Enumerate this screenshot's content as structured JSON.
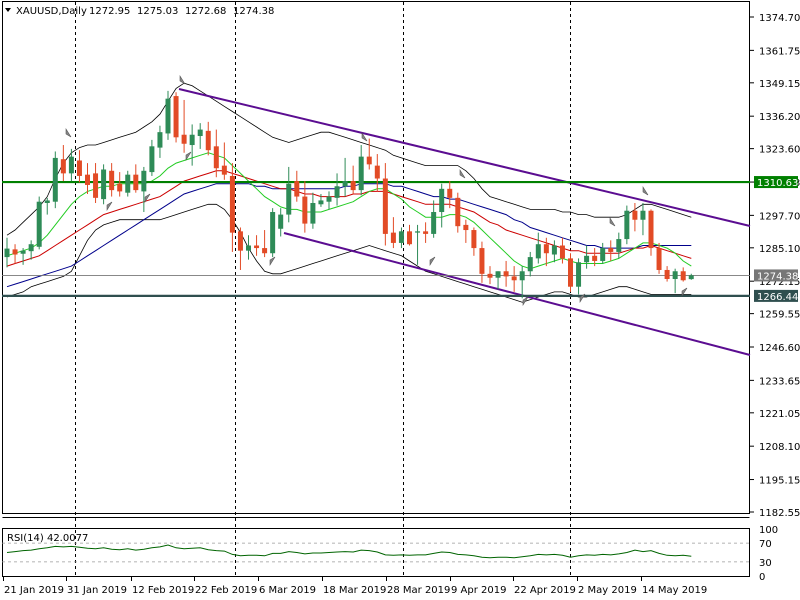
{
  "header": {
    "symbol": "XAUUSD,Daily",
    "open": "1272.95",
    "high": "1275.03",
    "low": "1272.68",
    "close": "1274.38"
  },
  "chart_data": {
    "type": "candlestick",
    "price_axis": {
      "ticks": [
        "1374.70",
        "1361.75",
        "1349.15",
        "1336.20",
        "1323.60",
        "1310.63",
        "1297.70",
        "1285.10",
        "1272.15",
        "1259.55",
        "1246.60",
        "1233.65",
        "1221.05",
        "1208.10",
        "1195.15",
        "1182.55"
      ],
      "ylim": [
        1182.55,
        1374.7
      ]
    },
    "level_labels": [
      {
        "name": "resistance",
        "value": "1310.63",
        "color": "#008000"
      },
      {
        "name": "support",
        "value": "1266.44",
        "color": "#2f4f4f"
      },
      {
        "name": "current",
        "value": "1274.38",
        "color": "#777777"
      }
    ],
    "time_axis": [
      "21 Jan 2019",
      "31 Jan 2019",
      "12 Feb 2019",
      "22 Feb 2019",
      "6 Mar 2019",
      "18 Mar 2019",
      "28 Mar 2019",
      "9 Apr 2019",
      "22 Apr 2019",
      "2 May 2019",
      "14 May 2019"
    ],
    "candles": [
      {
        "o": 1281.5,
        "h": 1289.0,
        "l": 1277.5,
        "c": 1284.8
      },
      {
        "o": 1284.5,
        "h": 1286.5,
        "l": 1279.0,
        "c": 1282.5
      },
      {
        "o": 1282.8,
        "h": 1285.0,
        "l": 1278.5,
        "c": 1284.0
      },
      {
        "o": 1283.8,
        "h": 1288.0,
        "l": 1280.5,
        "c": 1286.5
      },
      {
        "o": 1285.5,
        "h": 1305.0,
        "l": 1284.5,
        "c": 1303.0
      },
      {
        "o": 1302.5,
        "h": 1304.5,
        "l": 1298.0,
        "c": 1303.5
      },
      {
        "o": 1303.0,
        "h": 1322.5,
        "l": 1300.5,
        "c": 1320.0
      },
      {
        "o": 1319.5,
        "h": 1325.0,
        "l": 1311.0,
        "c": 1314.0
      },
      {
        "o": 1314.0,
        "h": 1323.5,
        "l": 1311.0,
        "c": 1320.5
      },
      {
        "o": 1319.0,
        "h": 1323.0,
        "l": 1310.5,
        "c": 1313.0
      },
      {
        "o": 1313.5,
        "h": 1318.0,
        "l": 1306.0,
        "c": 1309.5
      },
      {
        "o": 1314.0,
        "h": 1318.0,
        "l": 1302.5,
        "c": 1304.5
      },
      {
        "o": 1304.0,
        "h": 1317.5,
        "l": 1302.0,
        "c": 1315.5
      },
      {
        "o": 1315.0,
        "h": 1318.0,
        "l": 1305.0,
        "c": 1307.5
      },
      {
        "o": 1310.0,
        "h": 1314.5,
        "l": 1305.0,
        "c": 1307.0
      },
      {
        "o": 1306.5,
        "h": 1315.0,
        "l": 1305.0,
        "c": 1313.5
      },
      {
        "o": 1313.5,
        "h": 1317.5,
        "l": 1306.5,
        "c": 1307.5
      },
      {
        "o": 1307.0,
        "h": 1316.5,
        "l": 1299.0,
        "c": 1315.0
      },
      {
        "o": 1314.5,
        "h": 1327.0,
        "l": 1313.0,
        "c": 1324.5
      },
      {
        "o": 1324.0,
        "h": 1332.5,
        "l": 1320.0,
        "c": 1330.0
      },
      {
        "o": 1329.5,
        "h": 1346.0,
        "l": 1327.0,
        "c": 1343.0
      },
      {
        "o": 1344.0,
        "h": 1345.5,
        "l": 1326.0,
        "c": 1328.0
      },
      {
        "o": 1329.0,
        "h": 1342.5,
        "l": 1322.0,
        "c": 1325.5
      },
      {
        "o": 1325.0,
        "h": 1333.0,
        "l": 1317.0,
        "c": 1329.0
      },
      {
        "o": 1328.5,
        "h": 1333.5,
        "l": 1323.5,
        "c": 1331.0
      },
      {
        "o": 1330.5,
        "h": 1334.0,
        "l": 1321.0,
        "c": 1323.0
      },
      {
        "o": 1324.5,
        "h": 1331.0,
        "l": 1312.5,
        "c": 1316.0
      },
      {
        "o": 1317.0,
        "h": 1326.0,
        "l": 1311.5,
        "c": 1313.5
      },
      {
        "o": 1313.0,
        "h": 1318.0,
        "l": 1283.5,
        "c": 1291.0
      },
      {
        "o": 1291.5,
        "h": 1293.0,
        "l": 1276.5,
        "c": 1284.0
      },
      {
        "o": 1284.0,
        "h": 1290.0,
        "l": 1280.5,
        "c": 1286.0
      },
      {
        "o": 1286.0,
        "h": 1290.0,
        "l": 1282.0,
        "c": 1285.0
      },
      {
        "o": 1285.0,
        "h": 1292.0,
        "l": 1281.5,
        "c": 1283.0
      },
      {
        "o": 1283.0,
        "h": 1300.5,
        "l": 1281.5,
        "c": 1299.0
      },
      {
        "o": 1292.5,
        "h": 1300.5,
        "l": 1289.5,
        "c": 1298.0
      },
      {
        "o": 1298.0,
        "h": 1316.5,
        "l": 1295.0,
        "c": 1310.0
      },
      {
        "o": 1311.0,
        "h": 1315.0,
        "l": 1303.0,
        "c": 1305.0
      },
      {
        "o": 1305.0,
        "h": 1311.0,
        "l": 1291.0,
        "c": 1294.5
      },
      {
        "o": 1294.5,
        "h": 1306.5,
        "l": 1292.5,
        "c": 1302.5
      },
      {
        "o": 1302.0,
        "h": 1306.0,
        "l": 1301.0,
        "c": 1303.5
      },
      {
        "o": 1303.0,
        "h": 1307.0,
        "l": 1300.0,
        "c": 1305.0
      },
      {
        "o": 1304.5,
        "h": 1314.0,
        "l": 1301.5,
        "c": 1309.0
      },
      {
        "o": 1309.0,
        "h": 1320.0,
        "l": 1305.0,
        "c": 1311.0
      },
      {
        "o": 1311.0,
        "h": 1317.0,
        "l": 1306.0,
        "c": 1307.5
      },
      {
        "o": 1307.5,
        "h": 1325.0,
        "l": 1305.5,
        "c": 1320.5
      },
      {
        "o": 1320.5,
        "h": 1327.5,
        "l": 1315.5,
        "c": 1317.5
      },
      {
        "o": 1317.0,
        "h": 1321.5,
        "l": 1307.0,
        "c": 1312.0
      },
      {
        "o": 1312.0,
        "h": 1318.0,
        "l": 1286.0,
        "c": 1290.5
      },
      {
        "o": 1291.0,
        "h": 1297.0,
        "l": 1285.0,
        "c": 1287.0
      },
      {
        "o": 1287.0,
        "h": 1293.0,
        "l": 1285.0,
        "c": 1291.5
      },
      {
        "o": 1291.5,
        "h": 1294.0,
        "l": 1286.0,
        "c": 1286.5
      },
      {
        "o": 1291.0,
        "h": 1294.0,
        "l": 1278.5,
        "c": 1291.5
      },
      {
        "o": 1291.5,
        "h": 1295.0,
        "l": 1287.0,
        "c": 1290.5
      },
      {
        "o": 1290.5,
        "h": 1303.5,
        "l": 1289.0,
        "c": 1299.0
      },
      {
        "o": 1299.0,
        "h": 1310.0,
        "l": 1293.0,
        "c": 1308.0
      },
      {
        "o": 1308.0,
        "h": 1311.0,
        "l": 1300.5,
        "c": 1304.5
      },
      {
        "o": 1304.5,
        "h": 1306.5,
        "l": 1291.0,
        "c": 1293.5
      },
      {
        "o": 1294.0,
        "h": 1296.0,
        "l": 1287.0,
        "c": 1292.0
      },
      {
        "o": 1292.0,
        "h": 1293.0,
        "l": 1282.0,
        "c": 1285.0
      },
      {
        "o": 1285.0,
        "h": 1287.5,
        "l": 1271.5,
        "c": 1275.0
      },
      {
        "o": 1275.0,
        "h": 1278.0,
        "l": 1271.0,
        "c": 1273.5
      },
      {
        "o": 1273.5,
        "h": 1276.0,
        "l": 1269.0,
        "c": 1276.0
      },
      {
        "o": 1276.0,
        "h": 1280.0,
        "l": 1270.0,
        "c": 1274.0
      },
      {
        "o": 1274.0,
        "h": 1278.0,
        "l": 1268.0,
        "c": 1272.5
      },
      {
        "o": 1272.5,
        "h": 1278.0,
        "l": 1265.5,
        "c": 1276.0
      },
      {
        "o": 1276.0,
        "h": 1283.5,
        "l": 1274.0,
        "c": 1281.5
      },
      {
        "o": 1281.0,
        "h": 1291.0,
        "l": 1279.0,
        "c": 1286.5
      },
      {
        "o": 1286.5,
        "h": 1289.0,
        "l": 1278.0,
        "c": 1283.0
      },
      {
        "o": 1282.5,
        "h": 1288.0,
        "l": 1279.5,
        "c": 1286.0
      },
      {
        "o": 1286.0,
        "h": 1289.0,
        "l": 1279.0,
        "c": 1281.0
      },
      {
        "o": 1281.0,
        "h": 1283.0,
        "l": 1268.0,
        "c": 1270.0
      },
      {
        "o": 1270.0,
        "h": 1281.0,
        "l": 1267.0,
        "c": 1279.5
      },
      {
        "o": 1279.5,
        "h": 1286.0,
        "l": 1277.0,
        "c": 1282.0
      },
      {
        "o": 1282.0,
        "h": 1285.0,
        "l": 1278.0,
        "c": 1280.0
      },
      {
        "o": 1280.0,
        "h": 1287.0,
        "l": 1279.0,
        "c": 1285.0
      },
      {
        "o": 1285.0,
        "h": 1288.0,
        "l": 1280.0,
        "c": 1283.5
      },
      {
        "o": 1283.5,
        "h": 1291.0,
        "l": 1281.0,
        "c": 1288.5
      },
      {
        "o": 1288.5,
        "h": 1301.5,
        "l": 1286.5,
        "c": 1299.5
      },
      {
        "o": 1299.5,
        "h": 1302.5,
        "l": 1291.5,
        "c": 1296.0
      },
      {
        "o": 1296.0,
        "h": 1302.5,
        "l": 1290.0,
        "c": 1299.5
      },
      {
        "o": 1299.5,
        "h": 1300.0,
        "l": 1282.0,
        "c": 1285.0
      },
      {
        "o": 1285.0,
        "h": 1287.0,
        "l": 1275.0,
        "c": 1276.5
      },
      {
        "o": 1276.5,
        "h": 1278.0,
        "l": 1272.0,
        "c": 1273.0
      },
      {
        "o": 1273.0,
        "h": 1277.0,
        "l": 1267.5,
        "c": 1276.0
      },
      {
        "o": 1276.0,
        "h": 1277.5,
        "l": 1272.0,
        "c": 1272.5
      },
      {
        "o": 1272.95,
        "h": 1275.03,
        "l": 1272.68,
        "c": 1274.38
      }
    ],
    "indicators": {
      "ma_red": [
        1278,
        1279,
        1280,
        1281,
        1282,
        1284,
        1286,
        1288,
        1290,
        1292,
        1294,
        1296,
        1298,
        1299,
        1300,
        1301,
        1302,
        1303,
        1304,
        1305,
        1307,
        1309,
        1311,
        1312,
        1313,
        1314,
        1315,
        1315,
        1314,
        1313,
        1312,
        1311,
        1310,
        1309,
        1308,
        1308,
        1307,
        1306,
        1306,
        1305,
        1305,
        1305,
        1305,
        1306,
        1306,
        1307,
        1307,
        1307,
        1306,
        1305,
        1304,
        1303,
        1302,
        1302,
        1302,
        1302,
        1301,
        1300,
        1299,
        1297,
        1295,
        1294,
        1292,
        1291,
        1290,
        1289,
        1288,
        1287,
        1286,
        1285,
        1284,
        1284,
        1283,
        1283,
        1283,
        1283,
        1283,
        1284,
        1285,
        1285,
        1286,
        1285,
        1284,
        1283,
        1282,
        1281
      ],
      "ma_green": [
        1282,
        1283,
        1284,
        1285,
        1287,
        1290,
        1294,
        1298,
        1302,
        1305,
        1307,
        1308,
        1309,
        1309,
        1310,
        1310,
        1310,
        1310,
        1311,
        1313,
        1316,
        1318,
        1319,
        1320,
        1321,
        1322,
        1321,
        1320,
        1317,
        1314,
        1311,
        1308,
        1305,
        1303,
        1301,
        1300,
        1300,
        1299,
        1299,
        1299,
        1300,
        1301,
        1302,
        1303,
        1305,
        1307,
        1308,
        1308,
        1306,
        1304,
        1301,
        1299,
        1297,
        1297,
        1297,
        1298,
        1298,
        1297,
        1295,
        1292,
        1289,
        1286,
        1283,
        1280,
        1278,
        1277,
        1278,
        1279,
        1280,
        1281,
        1280,
        1279,
        1279,
        1279,
        1279,
        1280,
        1281,
        1283,
        1285,
        1287,
        1287,
        1286,
        1285,
        1283,
        1280,
        1278
      ],
      "ma_blue": [
        1270,
        1271,
        1272,
        1273,
        1274,
        1275,
        1276,
        1277,
        1278,
        1280,
        1282,
        1284,
        1286,
        1288,
        1290,
        1292,
        1294,
        1296,
        1298,
        1300,
        1302,
        1304,
        1306,
        1307,
        1308,
        1309,
        1310,
        1310,
        1310,
        1310,
        1310,
        1309,
        1309,
        1308,
        1308,
        1308,
        1308,
        1308,
        1308,
        1308,
        1308,
        1308,
        1309,
        1309,
        1310,
        1310,
        1310,
        1310,
        1309,
        1309,
        1308,
        1307,
        1306,
        1305,
        1305,
        1304,
        1304,
        1303,
        1302,
        1301,
        1300,
        1299,
        1298,
        1296,
        1295,
        1293,
        1292,
        1291,
        1290,
        1289,
        1288,
        1287,
        1286,
        1286,
        1285,
        1285,
        1285,
        1285,
        1285,
        1286,
        1286,
        1286,
        1286,
        1286,
        1286,
        1286
      ],
      "bb_upper": [
        1290,
        1292,
        1295,
        1298,
        1301,
        1305,
        1312,
        1318,
        1322,
        1324,
        1325,
        1325,
        1326,
        1327,
        1328,
        1329,
        1330,
        1332,
        1334,
        1337,
        1342,
        1347,
        1349,
        1348,
        1346,
        1344,
        1342,
        1340,
        1338,
        1336,
        1334,
        1332,
        1330,
        1328,
        1327,
        1326,
        1327,
        1328,
        1329,
        1330,
        1330,
        1329,
        1328,
        1327,
        1326,
        1325,
        1324,
        1323,
        1321,
        1320,
        1319,
        1318,
        1317,
        1317,
        1317,
        1317,
        1317,
        1315,
        1312,
        1308,
        1305,
        1304,
        1303,
        1302,
        1301,
        1300,
        1300,
        1300,
        1300,
        1299,
        1299,
        1298,
        1298,
        1297,
        1297,
        1297,
        1297,
        1298,
        1300,
        1302,
        1302,
        1301,
        1300,
        1299,
        1298,
        1297
      ],
      "bb_lower": [
        1266,
        1267,
        1268,
        1270,
        1271,
        1272,
        1273,
        1274,
        1276,
        1282,
        1288,
        1292,
        1294,
        1295,
        1296,
        1296,
        1296,
        1296,
        1296,
        1296,
        1297,
        1298,
        1299,
        1300,
        1301,
        1302,
        1302,
        1300,
        1296,
        1291,
        1285,
        1280,
        1276,
        1275,
        1275,
        1276,
        1277,
        1278,
        1279,
        1280,
        1281,
        1282,
        1283,
        1284,
        1285,
        1286,
        1285,
        1284,
        1283,
        1282,
        1280,
        1278,
        1276,
        1275,
        1274,
        1273,
        1272,
        1271,
        1270,
        1269,
        1268,
        1267,
        1266,
        1265,
        1264,
        1265,
        1266,
        1267,
        1268,
        1268,
        1267,
        1266,
        1266,
        1267,
        1268,
        1269,
        1270,
        1270,
        1269,
        1268,
        1267,
        1267,
        1267,
        1267,
        1267,
        1267
      ]
    },
    "rsi": {
      "label": "RSI(14) 42.0077",
      "ticks": [
        "100",
        "70",
        "30",
        "0"
      ],
      "levels": [
        70,
        30
      ],
      "values": [
        50,
        52,
        54,
        55,
        58,
        60,
        63,
        62,
        63,
        61,
        59,
        58,
        60,
        57,
        56,
        58,
        55,
        57,
        60,
        62,
        66,
        60,
        58,
        59,
        60,
        56,
        54,
        53,
        46,
        43,
        44,
        44,
        43,
        48,
        48,
        52,
        50,
        47,
        49,
        49,
        50,
        51,
        52,
        51,
        55,
        54,
        51,
        45,
        44,
        45,
        44,
        45,
        45,
        48,
        51,
        50,
        46,
        45,
        43,
        40,
        39,
        40,
        40,
        39,
        41,
        43,
        46,
        45,
        46,
        44,
        40,
        43,
        45,
        44,
        46,
        45,
        47,
        50,
        55,
        52,
        54,
        48,
        44,
        43,
        44,
        42
      ]
    }
  }
}
